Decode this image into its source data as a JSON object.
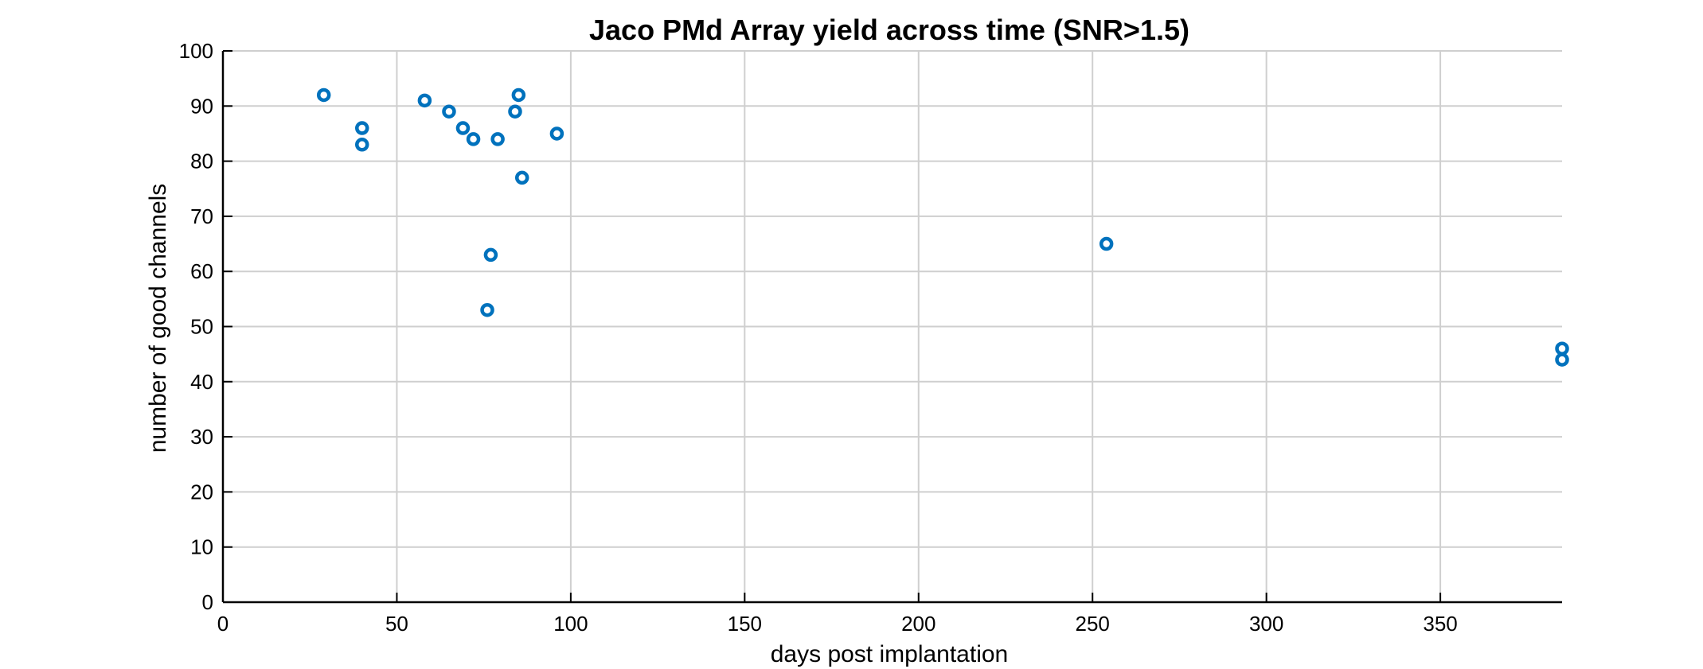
{
  "chart_data": {
    "type": "scatter",
    "title": "Jaco PMd Array yield across time (SNR>1.5)",
    "xlabel": "days post implantation",
    "ylabel": "number of good channels",
    "xlim": [
      0,
      385
    ],
    "ylim": [
      0,
      100
    ],
    "xticks": [
      0,
      50,
      100,
      150,
      200,
      250,
      300,
      350
    ],
    "yticks": [
      0,
      10,
      20,
      30,
      40,
      50,
      60,
      70,
      80,
      90,
      100
    ],
    "grid": true,
    "marker": "open-circle",
    "series": [
      {
        "color": "#0072BD",
        "points": [
          {
            "x": 29,
            "y": 92
          },
          {
            "x": 40,
            "y": 86
          },
          {
            "x": 40,
            "y": 83
          },
          {
            "x": 58,
            "y": 91
          },
          {
            "x": 65,
            "y": 89
          },
          {
            "x": 69,
            "y": 86
          },
          {
            "x": 72,
            "y": 84
          },
          {
            "x": 76,
            "y": 53
          },
          {
            "x": 77,
            "y": 63
          },
          {
            "x": 79,
            "y": 84
          },
          {
            "x": 84,
            "y": 89
          },
          {
            "x": 85,
            "y": 92
          },
          {
            "x": 86,
            "y": 77
          },
          {
            "x": 96,
            "y": 85
          },
          {
            "x": 254,
            "y": 65
          },
          {
            "x": 385,
            "y": 46
          },
          {
            "x": 385,
            "y": 44
          }
        ]
      }
    ]
  }
}
